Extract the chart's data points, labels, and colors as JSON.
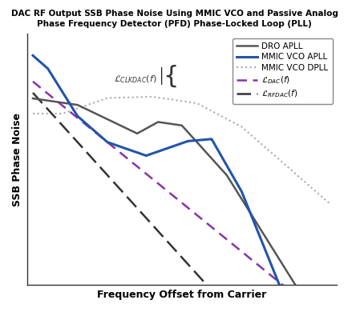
{
  "title_line1": "DAC RF Output SSB Phase Noise Using MMIC VCO and Passive Analog",
  "title_line2": "Phase Frequency Detector (PFD) Phase-Locked Loop (PLL)",
  "xlabel": "Frequency Offset from Carrier",
  "ylabel": "SSB Phase Noise",
  "bg_color": "#ffffff",
  "colors": {
    "dro_apll": "#555555",
    "mmic_vco_apll": "#2255aa",
    "mmic_vco_dpll": "#aaaaaa",
    "l_dac": "#8833aa",
    "l_rfdac": "#333333"
  },
  "legend_labels": [
    "DRO APLL",
    "MMIC VCO APLL",
    "MMIC VCO DPLL",
    "$\\mathcal{L}_{DAC}(f)$",
    "$\\mathcal{L}_{RFDAC}(f)$"
  ],
  "clkdac_label": "$\\mathcal{L}_{CLKDAC}(f)$"
}
